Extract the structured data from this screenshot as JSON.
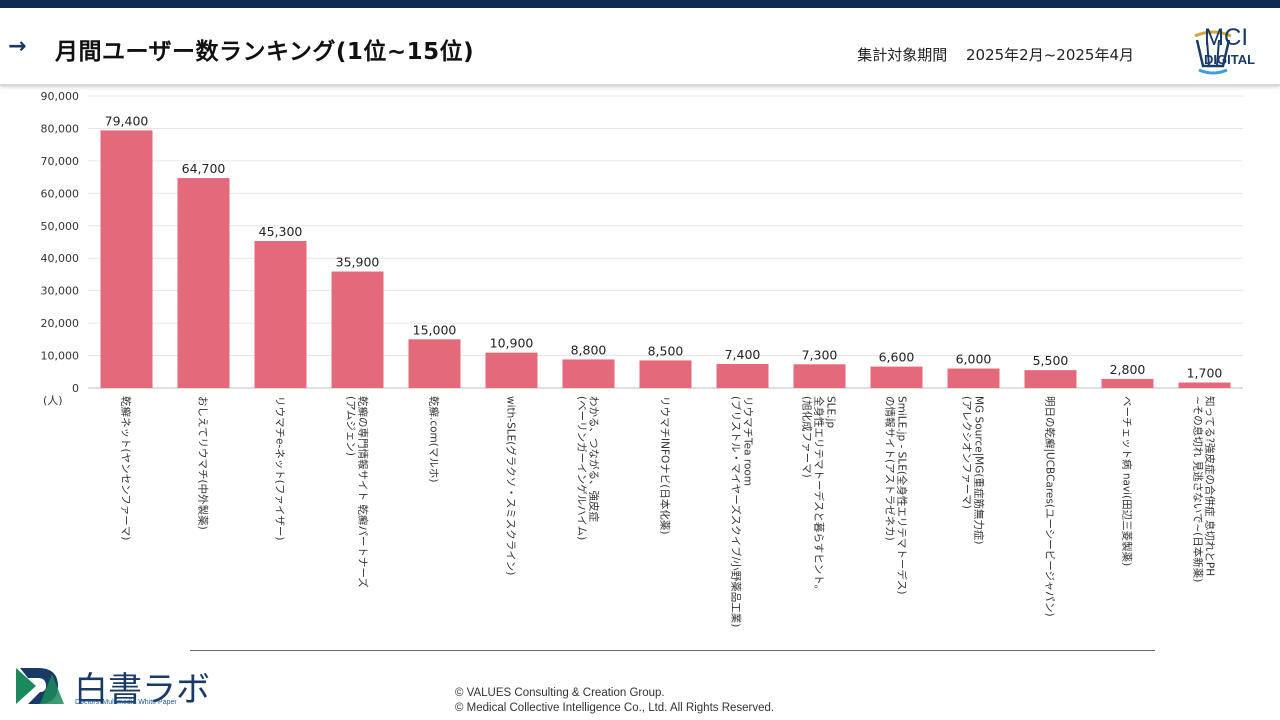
{
  "header": {
    "title": "月間ユーザー数ランキング(1位~15位)",
    "period_label": "集計対象期間",
    "period_value": "2025年2月~2025年4月",
    "brand_name": "MCI",
    "brand_sub": "DIGITAL"
  },
  "footer": {
    "brand_name": "白書ラボ",
    "brand_sub": "Doctors' Multimedia White Paper",
    "copyright_1": "©  VALUES Consulting & Creation Group.",
    "copyright_2": "©  Medical Collective Intelligence Co., Ltd.  All Rights Reserved."
  },
  "colors": {
    "bar": "#e3697b",
    "header_bar": "#0f2a50",
    "brand": "#1a3a66",
    "brand_green": "#1b8a5a"
  },
  "chart_data": {
    "type": "bar",
    "ylim": [
      0,
      90000
    ],
    "y_ticks": [
      "0",
      "10,000",
      "20,000",
      "30,000",
      "40,000",
      "50,000",
      "60,000",
      "70,000",
      "80,000",
      "90,000"
    ],
    "y_unit": "(人)",
    "grid": true,
    "categories": [
      [
        "乾癬ネット(ヤンセンファーマ)"
      ],
      [
        "おしえてリウマチ(中外製薬)"
      ],
      [
        "リウマチe-ネット(ファイザー)"
      ],
      [
        "乾癬の専門情報サイト 乾癬パートナーズ",
        "(アムジェン)"
      ],
      [
        "乾癬.com(マルホ)"
      ],
      [
        "with-SLE(グラクソ・スミスクライン)"
      ],
      [
        "わかる、つながる、強皮症",
        "(ベーリンガーインゲルハイム)"
      ],
      [
        "リウマチINFOナビ(日本化薬)"
      ],
      [
        "リウマチTea room",
        "(ブリストル・マイヤーズスクイブ/小野薬品工業)"
      ],
      [
        "SLE.jp",
        "全身性エリテマトーデスと暮らすヒント。",
        "(旭化成ファーマ)"
      ],
      [
        "SmiLE.jp - SLE(全身性エリテマトーデス)",
        "の情報サイト(アストラゼネカ)"
      ],
      [
        "MG Source|MG(重症筋無力症)",
        "(アレクシオンファーマ)"
      ],
      [
        "明日の乾癬|UCBCares(ユーシービージャパン)"
      ],
      [
        "ベーチェット病 navi(田辺三菱製薬)"
      ],
      [
        "知ってる?強皮症の合併症 息切れとPH",
        "~その息切れ 見逃さないで~(日本新薬)"
      ]
    ],
    "values": [
      79400,
      64700,
      45300,
      35900,
      15000,
      10900,
      8800,
      8500,
      7400,
      7300,
      6600,
      6000,
      5500,
      2800,
      1700
    ],
    "value_labels": [
      "79,400",
      "64,700",
      "45,300",
      "35,900",
      "15,000",
      "10,900",
      "8,800",
      "8,500",
      "7,400",
      "7,300",
      "6,600",
      "6,000",
      "5,500",
      "2,800",
      "1,700"
    ]
  }
}
